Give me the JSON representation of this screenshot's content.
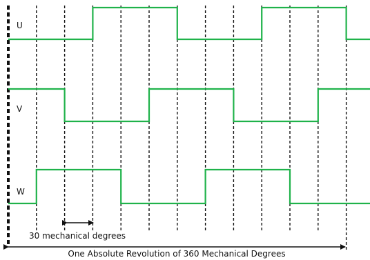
{
  "signals": [
    {
      "label": "U",
      "start": 0,
      "transitions": [
        3,
        6,
        9,
        12
      ]
    },
    {
      "label": "V",
      "start": 1,
      "transitions": [
        2,
        5,
        8,
        11
      ]
    },
    {
      "label": "W",
      "start": 0,
      "transitions": [
        1,
        4,
        7,
        10
      ]
    }
  ],
  "grid_divisions": 12,
  "annotations": {
    "segment_label": "30 mechanical degrees",
    "revolution_label": "One Absolute Revolution of 360 Mechanical Degrees"
  },
  "colors": {
    "signal": "#1fb24a",
    "grid": "#111111",
    "text": "#111111"
  }
}
